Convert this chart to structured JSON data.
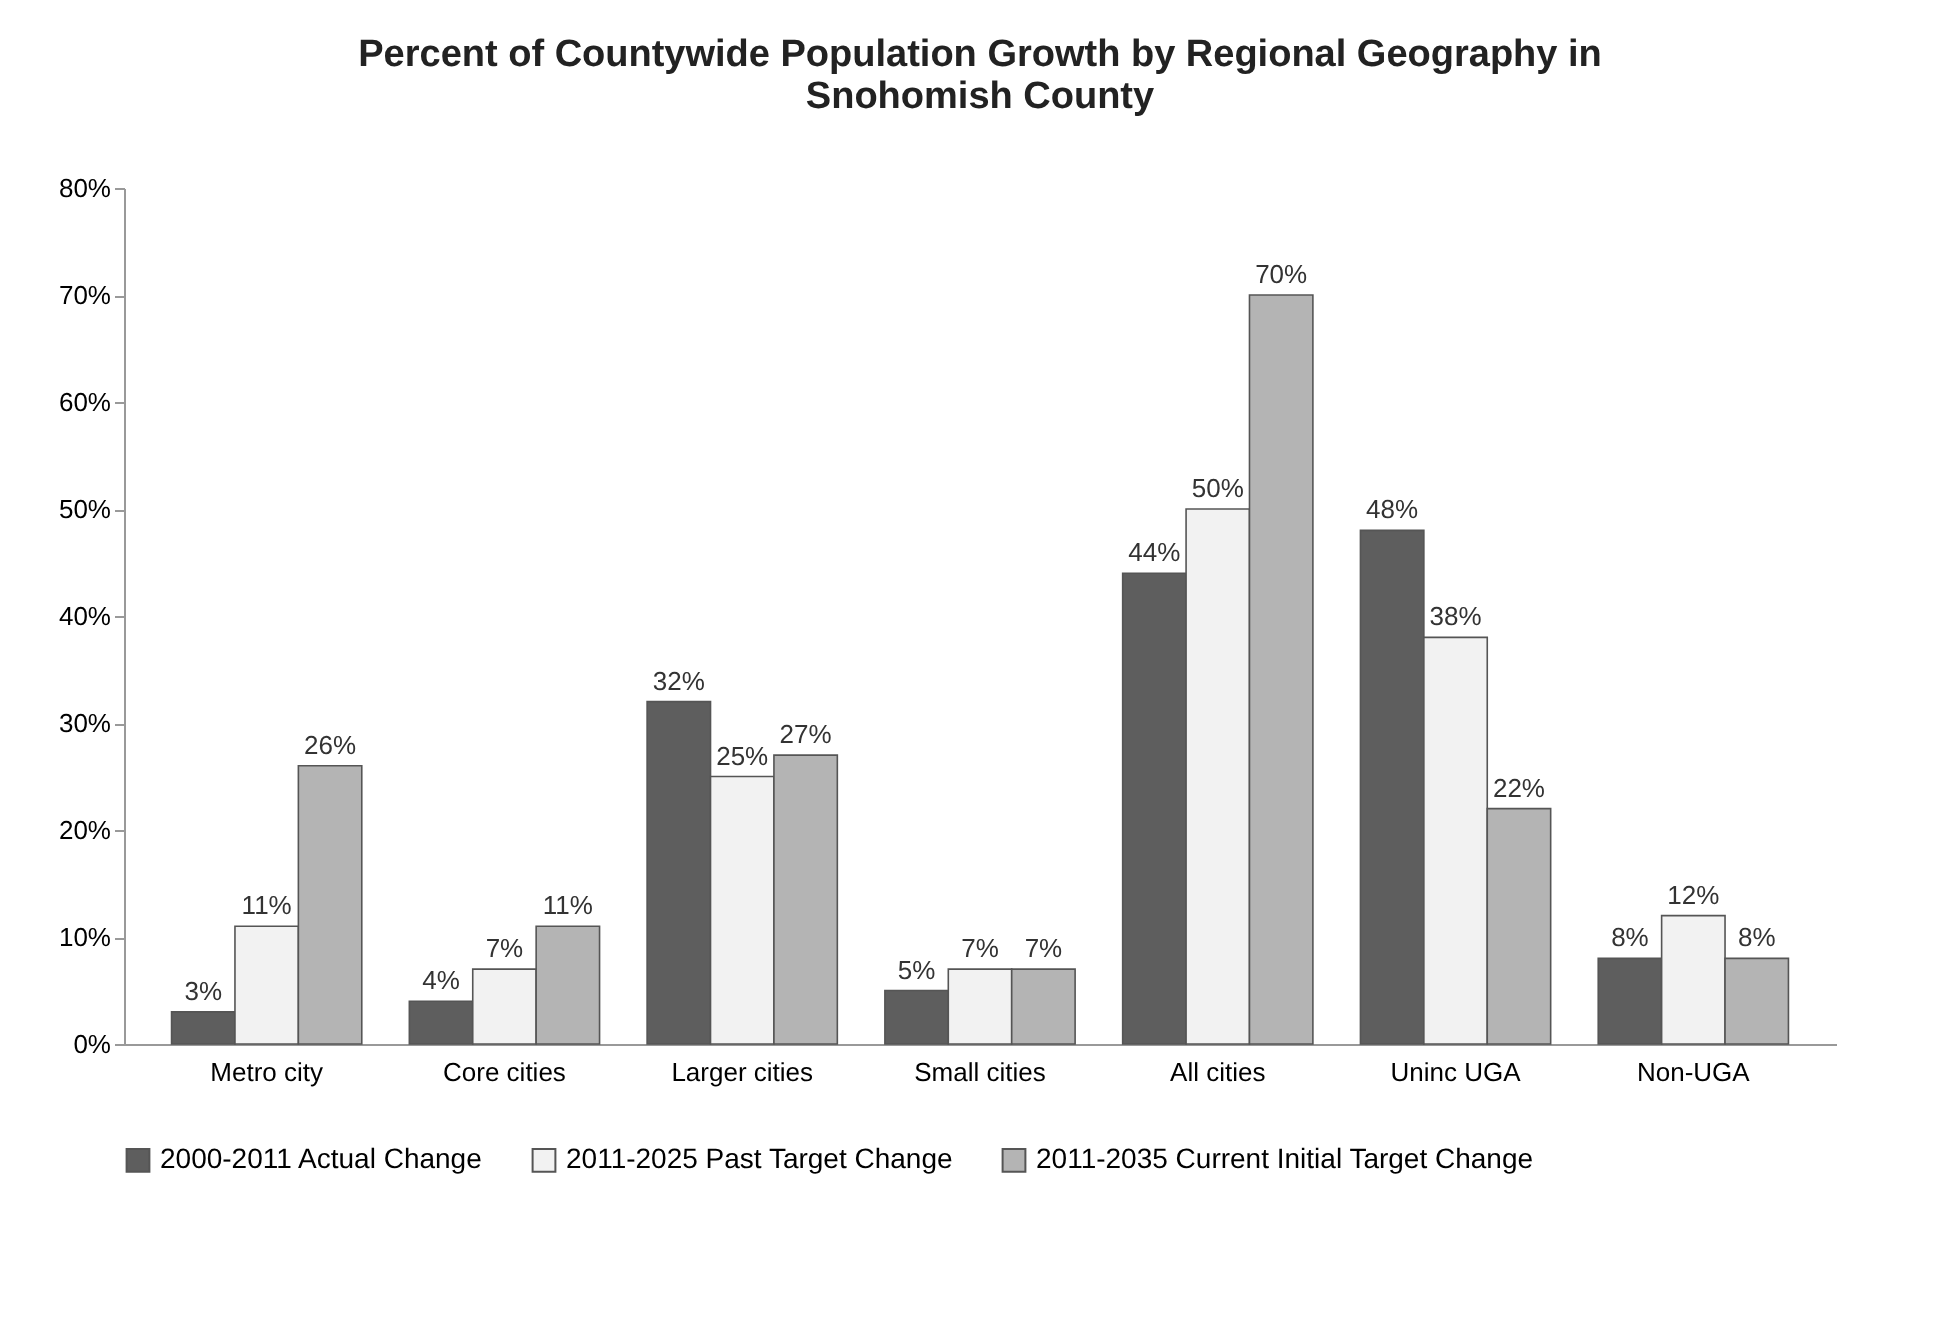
{
  "chart_data": {
    "type": "bar",
    "title": [
      "Percent of Countywide Population Growth by Regional Geography in",
      "Snohomish County"
    ],
    "categories": [
      "Metro city",
      "Core cities",
      "Larger cities",
      "Small cities",
      "All cities",
      "Uninc UGA",
      "Non-UGA"
    ],
    "series": [
      {
        "name": "2000-2011 Actual Change",
        "color": "#5e5e5e",
        "values": [
          3,
          4,
          32,
          5,
          44,
          48,
          8
        ],
        "value_labels": [
          "3%",
          "4%",
          "32%",
          "5%",
          "44%",
          "48%",
          "8%"
        ]
      },
      {
        "name": "2011-2025 Past Target Change",
        "color": "#f2f2f2",
        "values": [
          11,
          7,
          25,
          7,
          50,
          38,
          12
        ],
        "value_labels": [
          "11%",
          "7%",
          "25%",
          "7%",
          "50%",
          "38%",
          "12%"
        ]
      },
      {
        "name": "2011-2035 Current Initial Target Change",
        "color": "#b4b4b4",
        "values": [
          26,
          11,
          27,
          7,
          70,
          22,
          8
        ],
        "value_labels": [
          "26%",
          "11%",
          "27%",
          "7%",
          "70%",
          "22%",
          "8%"
        ]
      }
    ],
    "ylim": [
      0,
      80
    ],
    "yticks": [
      {
        "value": 0,
        "label": "0%"
      },
      {
        "value": 10,
        "label": "10%"
      },
      {
        "value": 20,
        "label": "20%"
      },
      {
        "value": 30,
        "label": "30%"
      },
      {
        "value": 40,
        "label": "40%"
      },
      {
        "value": 50,
        "label": "50%"
      },
      {
        "value": 60,
        "label": "60%"
      },
      {
        "value": 70,
        "label": "70%"
      },
      {
        "value": 80,
        "label": "80%"
      }
    ],
    "legend": "bottom",
    "grid": false
  }
}
